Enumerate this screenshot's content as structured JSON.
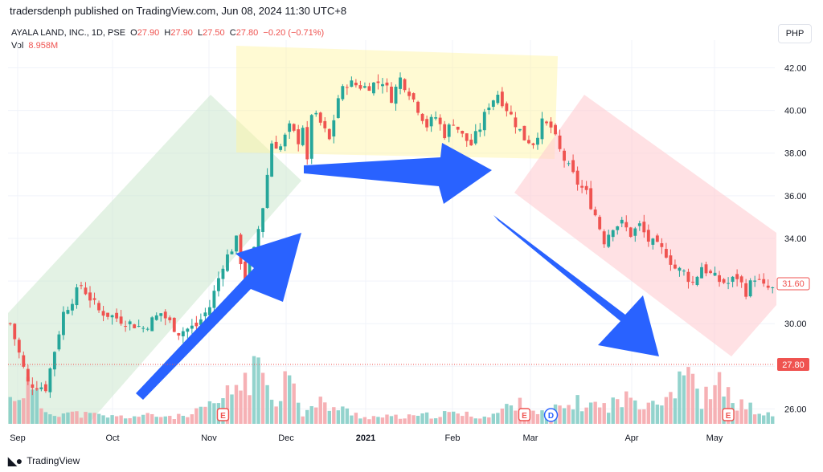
{
  "header": {
    "publisher_text": "tradersdenph published on TradingView.com, Jun 08, 2024 11:30 UTC+8"
  },
  "legend": {
    "symbol": "AYALA LAND, INC., 1D, PSE",
    "open_label": "O",
    "open": "27.90",
    "high_label": "H",
    "high": "27.90",
    "low_label": "L",
    "low": "27.50",
    "close_label": "C",
    "close": "27.80",
    "change": "−0.20 (−0.71%)",
    "vol_label": "Vol",
    "vol_value": "8.958M"
  },
  "currency": "PHP",
  "footer": {
    "logo_text": "TradingView"
  },
  "colors": {
    "up": "#26a69a",
    "down": "#ef5350",
    "arrow": "#2962ff"
  },
  "chart_data": {
    "type": "candlestick",
    "y_ticks": [
      "26.00",
      "28.00",
      "30.00",
      "32.00",
      "34.00",
      "36.00",
      "38.00",
      "40.00",
      "42.00"
    ],
    "ylim": [
      25.3,
      43.3
    ],
    "x_ticks": [
      "Sep",
      "Oct",
      "Nov",
      "Dec",
      "2021",
      "Feb",
      "Mar",
      "Apr",
      "May"
    ],
    "price_labels": [
      "31.60",
      "27.80"
    ],
    "price_path": [
      [
        0,
        30.0
      ],
      [
        4,
        27.2
      ],
      [
        8,
        27.0
      ],
      [
        12,
        30.5
      ],
      [
        16,
        31.8
      ],
      [
        20,
        30.6
      ],
      [
        26,
        30.1
      ],
      [
        30,
        29.8
      ],
      [
        34,
        30.5
      ],
      [
        38,
        29.6
      ],
      [
        42,
        29.9
      ],
      [
        45,
        30.8
      ],
      [
        48,
        32.8
      ],
      [
        51,
        33.9
      ],
      [
        53,
        32.0
      ],
      [
        55,
        33.4
      ],
      [
        57,
        35.5
      ],
      [
        59,
        38.5
      ],
      [
        61,
        38.3
      ],
      [
        63,
        39.2
      ],
      [
        65,
        38.6
      ],
      [
        66,
        39.3
      ],
      [
        67,
        37.5
      ],
      [
        68,
        39.9
      ],
      [
        70,
        39.4
      ],
      [
        72,
        38.6
      ],
      [
        74,
        40.6
      ],
      [
        76,
        41.3
      ],
      [
        80,
        41.1
      ],
      [
        84,
        41.4
      ],
      [
        86,
        40.6
      ],
      [
        88,
        41.5
      ],
      [
        90,
        40.9
      ],
      [
        92,
        40.1
      ],
      [
        94,
        39.3
      ],
      [
        96,
        39.7
      ],
      [
        98,
        38.9
      ],
      [
        100,
        39.5
      ],
      [
        102,
        38.8
      ],
      [
        104,
        38.4
      ],
      [
        106,
        39.2
      ],
      [
        108,
        40.3
      ],
      [
        110,
        40.8
      ],
      [
        112,
        40.1
      ],
      [
        114,
        39.4
      ],
      [
        116,
        38.7
      ],
      [
        118,
        38.5
      ],
      [
        120,
        39.4
      ],
      [
        122,
        39.2
      ],
      [
        124,
        38.1
      ],
      [
        126,
        37.3
      ],
      [
        128,
        36.6
      ],
      [
        130,
        36.1
      ],
      [
        132,
        35.1
      ],
      [
        134,
        33.9
      ],
      [
        136,
        34.6
      ],
      [
        138,
        34.7
      ],
      [
        140,
        34.2
      ],
      [
        142,
        34.6
      ],
      [
        144,
        33.9
      ],
      [
        146,
        33.6
      ],
      [
        148,
        33.3
      ],
      [
        150,
        32.6
      ],
      [
        152,
        32.4
      ],
      [
        154,
        31.9
      ],
      [
        156,
        32.7
      ],
      [
        158,
        32.3
      ],
      [
        160,
        32.0
      ],
      [
        162,
        31.9
      ],
      [
        164,
        32.2
      ],
      [
        166,
        31.5
      ],
      [
        168,
        32.2
      ],
      [
        170,
        31.7
      ],
      [
        172,
        31.6
      ]
    ],
    "volume_peaks": [
      [
        0,
        0.35
      ],
      [
        4,
        0.55
      ],
      [
        8,
        0.18
      ],
      [
        14,
        0.15
      ],
      [
        24,
        0.1
      ],
      [
        32,
        0.12
      ],
      [
        40,
        0.1
      ],
      [
        48,
        0.35
      ],
      [
        51,
        0.55
      ],
      [
        57,
        0.8
      ],
      [
        61,
        0.3
      ],
      [
        63,
        1.0
      ],
      [
        66,
        0.15
      ],
      [
        70,
        0.3
      ],
      [
        80,
        0.1
      ],
      [
        90,
        0.1
      ],
      [
        100,
        0.15
      ],
      [
        108,
        0.1
      ],
      [
        114,
        0.3
      ],
      [
        120,
        0.15
      ],
      [
        128,
        0.3
      ],
      [
        134,
        0.25
      ],
      [
        138,
        0.35
      ],
      [
        144,
        0.35
      ],
      [
        148,
        0.4
      ],
      [
        150,
        0.55
      ],
      [
        152,
        0.95
      ],
      [
        154,
        0.55
      ],
      [
        156,
        0.35
      ],
      [
        160,
        0.55
      ],
      [
        164,
        0.3
      ],
      [
        168,
        0.2
      ],
      [
        172,
        0.1
      ]
    ],
    "events": [
      {
        "label": "E",
        "x": 48
      },
      {
        "label": "E",
        "x": 116
      },
      {
        "label": "D",
        "x": 122
      },
      {
        "label": "E",
        "x": 162
      }
    ]
  }
}
